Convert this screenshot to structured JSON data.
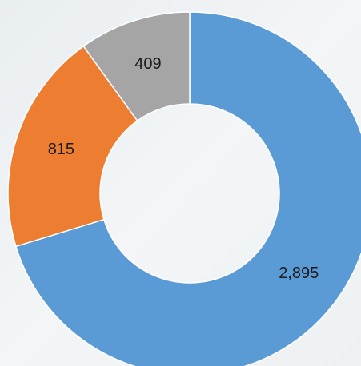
{
  "chart_data": {
    "type": "donut",
    "values": [
      2895,
      815,
      409
    ],
    "value_labels": [
      "2,895",
      "815",
      "409"
    ],
    "colors": [
      "#5b9bd5",
      "#ed7d31",
      "#a5a5a5"
    ]
  }
}
